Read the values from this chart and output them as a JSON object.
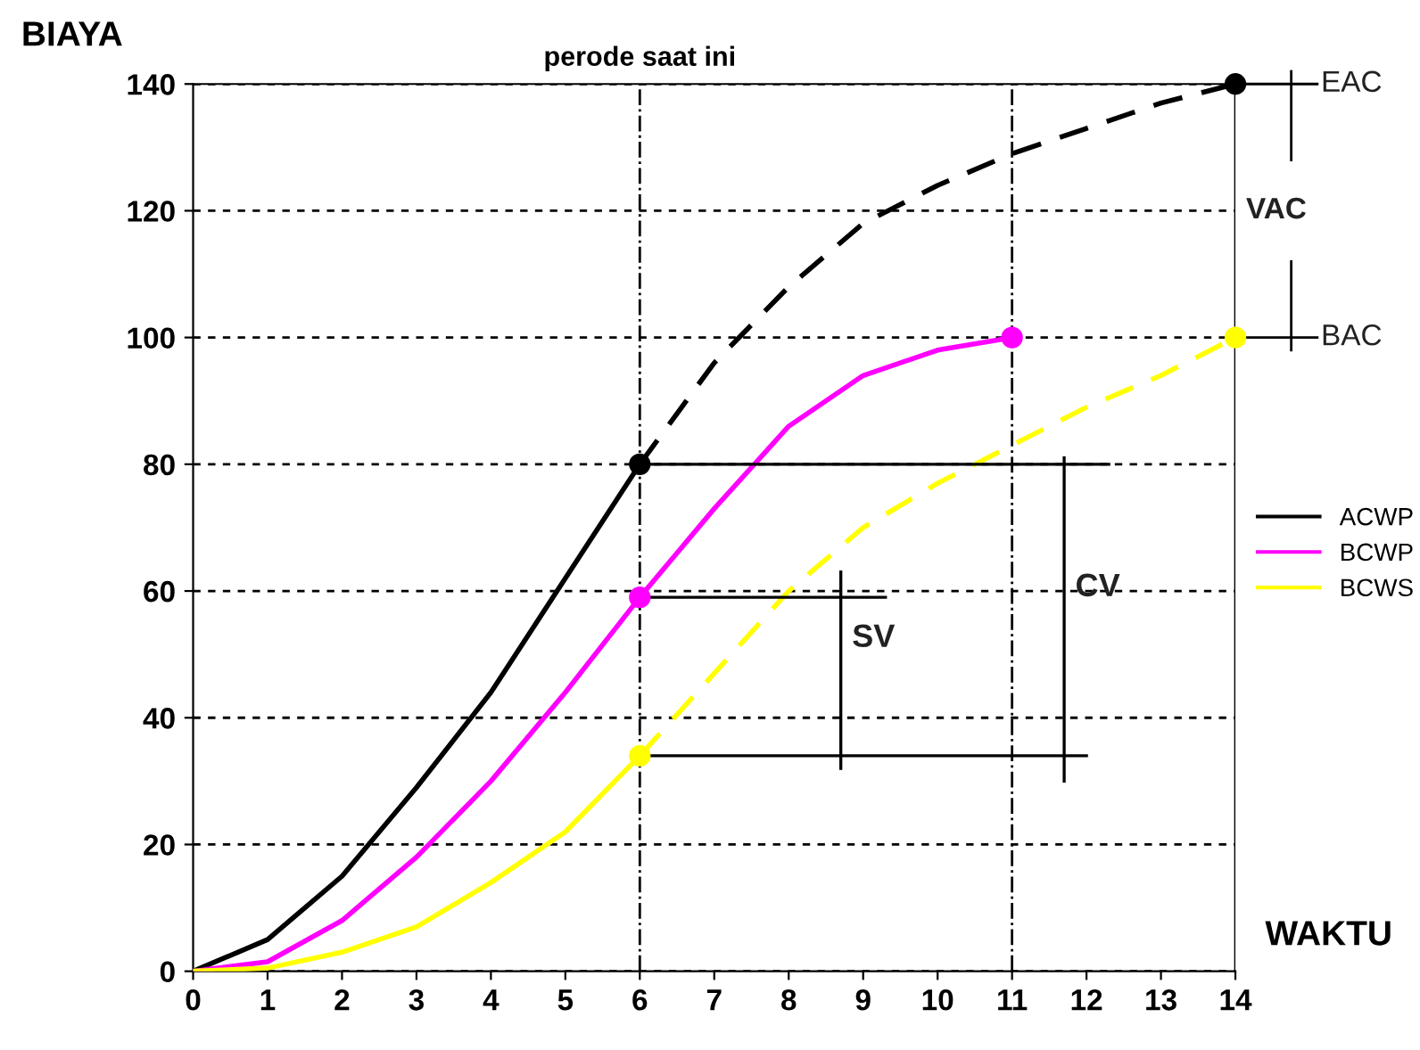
{
  "chart_data": {
    "type": "line",
    "xlabel": "WAKTU",
    "ylabel": "BIAYA",
    "xlim": [
      0,
      14
    ],
    "ylim": [
      0,
      140
    ],
    "xticks": [
      0,
      1,
      2,
      3,
      4,
      5,
      6,
      7,
      8,
      9,
      10,
      11,
      12,
      13,
      14
    ],
    "yticks": [
      0,
      20,
      40,
      60,
      80,
      100,
      120,
      140
    ],
    "grid": "y",
    "legend": "right",
    "series": [
      {
        "name": "ACWP",
        "color": "#000000",
        "x": [
          0,
          1,
          2,
          3,
          4,
          5,
          6
        ],
        "values": [
          0,
          5,
          15,
          29,
          44,
          62,
          80
        ],
        "line_style": "solid"
      },
      {
        "name": "BCWP",
        "color": "#ff00ff",
        "x": [
          0,
          1,
          2,
          3,
          4,
          5,
          6,
          7,
          8,
          9,
          10,
          11
        ],
        "values": [
          0,
          1.5,
          8,
          18,
          30,
          44,
          59,
          73,
          86,
          94,
          98,
          100
        ],
        "line_style": "solid"
      },
      {
        "name": "BCWS",
        "color": "#ffff00",
        "x": [
          0,
          1,
          2,
          3,
          4,
          5,
          6
        ],
        "values": [
          0,
          0.5,
          3,
          7,
          14,
          22,
          34
        ],
        "line_style": "solid"
      },
      {
        "color": "#000000",
        "x": [
          6,
          7,
          8,
          9,
          10,
          11,
          12,
          13,
          14
        ],
        "values": [
          80,
          96,
          108,
          118,
          124,
          129,
          133,
          137,
          140
        ],
        "line_style": "dashed"
      },
      {
        "color": "#ffff00",
        "x": [
          6,
          7,
          8,
          9,
          10,
          11,
          12,
          13,
          14
        ],
        "values": [
          34,
          47,
          60,
          70,
          77,
          83,
          89,
          94,
          100
        ],
        "line_style": "dashed"
      },
      {
        "color": "#000000",
        "x": [
          6,
          12.3
        ],
        "values": [
          80,
          80
        ],
        "line_style": "solid"
      },
      {
        "color": "#000000",
        "x": [
          6,
          9.3
        ],
        "values": [
          59,
          59
        ],
        "line_style": "solid"
      },
      {
        "color": "#000000",
        "x": [
          6,
          12
        ],
        "values": [
          34,
          34
        ],
        "line_style": "solid"
      },
      {
        "color": "#000000",
        "x": [
          8.7,
          8.7
        ],
        "values": [
          32,
          63
        ],
        "line_style": "solid"
      },
      {
        "color": "#000000",
        "x": [
          11.7,
          11.7
        ],
        "values": [
          30,
          81
        ],
        "line_style": "solid"
      },
      {
        "type": "scatter",
        "x": [
          6,
          6,
          6,
          11,
          14,
          14
        ],
        "values": [
          80,
          59,
          34,
          100,
          100,
          140
        ],
        "colors": [
          "#000000",
          "#ff00ff",
          "#ffff00",
          "#ff00ff",
          "#ffff00",
          "#000000"
        ],
        "marker": "circle"
      }
    ],
    "ref_lines": [
      {
        "axis": "x",
        "value": 6,
        "label": "perode saat ini",
        "color": "#000000",
        "line_style": "dashdot"
      },
      {
        "axis": "x",
        "value": 11,
        "color": "#000000",
        "line_style": "dashdot"
      },
      {
        "axis": "x",
        "value": 14,
        "color": "#000000",
        "line_style": "solid"
      }
    ],
    "annotations": [
      "SV",
      "CV",
      "EAC",
      "VAC",
      "BAC"
    ]
  }
}
